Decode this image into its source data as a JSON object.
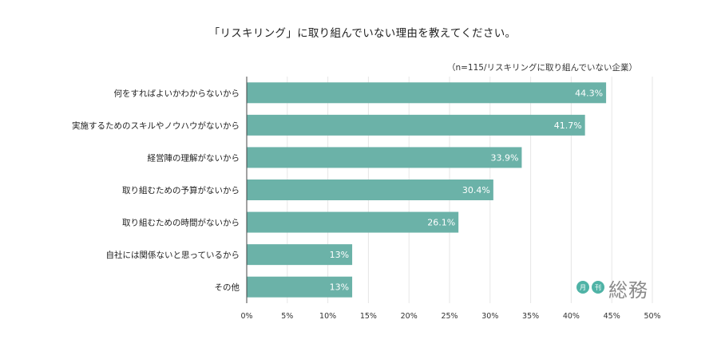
{
  "title": "「リスキリング」に取り組んでいない理由を教えてください。",
  "note": "（n=115/リスキリングに取り組んでいない企業）",
  "brand": {
    "circle1": "月",
    "circle2": "刊",
    "name": "総務"
  },
  "colors": {
    "bar": "#6bb2a8",
    "grid": "#e6e6e6",
    "axis": "#444444",
    "brand_accent": "#4fb3a6"
  },
  "chart_data": {
    "type": "bar",
    "orientation": "horizontal",
    "categories": [
      "何をすればよいかわからないから",
      "実施するためのスキルやノウハウがないから",
      "経営陣の理解がないから",
      "取り組むための予算がないから",
      "取り組むための時間がないから",
      "自社には関係ないと思っているから",
      "その他"
    ],
    "values": [
      44.3,
      41.7,
      33.9,
      30.4,
      26.1,
      13,
      13
    ],
    "value_labels": [
      "44.3%",
      "41.7%",
      "33.9%",
      "30.4%",
      "26.1%",
      "13%",
      "13%"
    ],
    "xlim": [
      0,
      50
    ],
    "xticks": [
      0,
      5,
      10,
      15,
      20,
      25,
      30,
      35,
      40,
      45,
      50
    ],
    "xtick_labels": [
      "0%",
      "5%",
      "10%",
      "15%",
      "20%",
      "25%",
      "30%",
      "35%",
      "40%",
      "45%",
      "50%"
    ],
    "grid": true,
    "legend": false
  }
}
